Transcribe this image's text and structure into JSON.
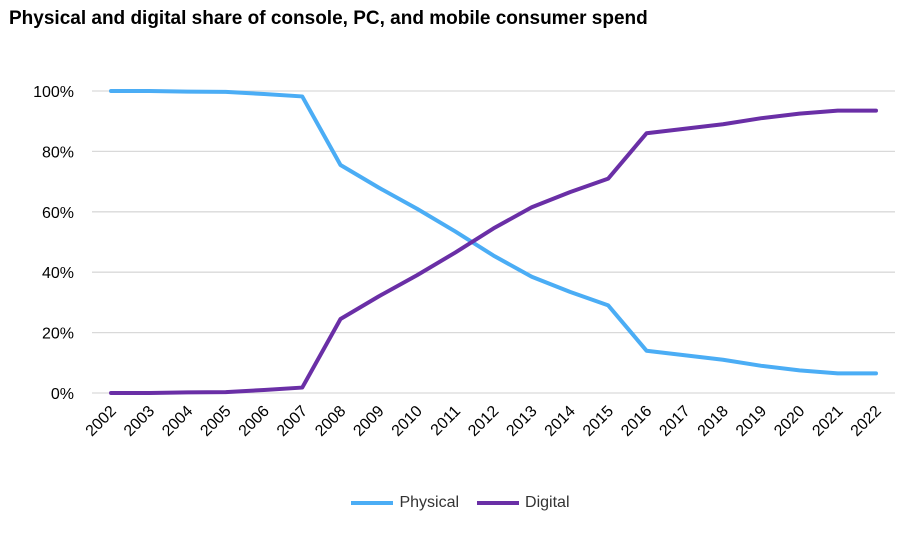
{
  "chart_data": {
    "type": "line",
    "title": "Physical and digital share of console, PC, and mobile consumer spend",
    "xlabel": "",
    "ylabel": "",
    "categories": [
      "2002",
      "2003",
      "2004",
      "2005",
      "2006",
      "2007",
      "2008",
      "2009",
      "2010",
      "2011",
      "2012",
      "2013",
      "2014",
      "2015",
      "2016",
      "2017",
      "2018",
      "2019",
      "2020",
      "2021",
      "2022"
    ],
    "ylim": [
      0,
      100
    ],
    "yticks": [
      "0%",
      "20%",
      "40%",
      "60%",
      "80%",
      "100%"
    ],
    "grid": true,
    "legend": "bottom",
    "series": [
      {
        "name": "Physical",
        "color": "#4BADF5",
        "values": [
          100,
          100,
          99.8,
          99.7,
          99,
          98.2,
          75.5,
          68,
          61,
          53.5,
          45.5,
          38.5,
          33.5,
          29,
          14,
          12.5,
          11,
          9,
          7.5,
          6.5,
          6.5
        ]
      },
      {
        "name": "Digital",
        "color": "#6A2FA6",
        "values": [
          0,
          0,
          0.2,
          0.3,
          1,
          1.8,
          24.5,
          32,
          39,
          46.5,
          54.5,
          61.5,
          66.5,
          71,
          86,
          87.5,
          89,
          91,
          92.5,
          93.5,
          93.5
        ]
      }
    ]
  }
}
